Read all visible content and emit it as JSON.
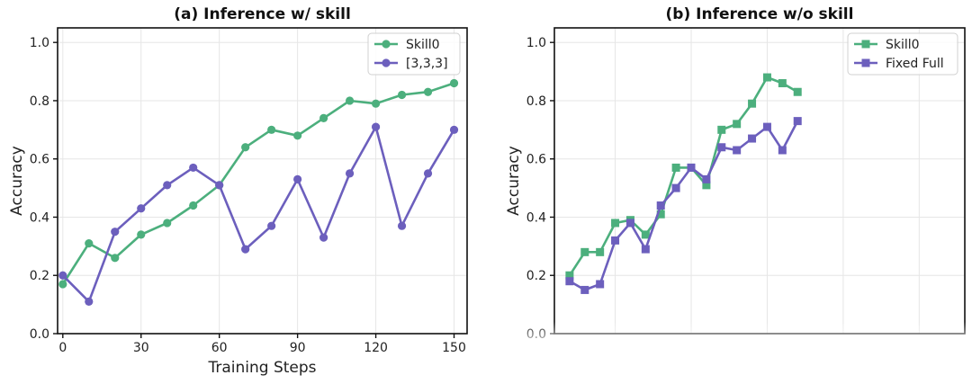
{
  "colors": {
    "green": "#4caf7d",
    "purple": "#6c5fbd"
  },
  "chart_data": [
    {
      "type": "line",
      "title": "(a) Inference w/ skill",
      "xlabel": "Training Steps",
      "ylabel": "Accuracy",
      "xlim": [
        -2,
        155
      ],
      "ylim": [
        0,
        1.05
      ],
      "xticks": [
        "0",
        "30",
        "60",
        "90",
        "120",
        "150"
      ],
      "yticks": [
        "0.0",
        "0.2",
        "0.4",
        "0.6",
        "0.8",
        "1.0"
      ],
      "grid": true,
      "legend_position": "top-right",
      "marker": "circle",
      "x": [
        0,
        10,
        20,
        30,
        40,
        50,
        60,
        70,
        80,
        90,
        100,
        110,
        120,
        130,
        140,
        150
      ],
      "series": [
        {
          "name": "Skill0",
          "color": "#4caf7d",
          "values": [
            0.17,
            0.31,
            0.26,
            0.34,
            0.38,
            0.44,
            0.51,
            0.64,
            0.7,
            0.68,
            0.74,
            0.8,
            0.79,
            0.82,
            0.83,
            0.86
          ]
        },
        {
          "name": "[3,3,3]",
          "color": "#6c5fbd",
          "values": [
            0.2,
            0.11,
            0.35,
            0.43,
            0.51,
            0.57,
            0.51,
            0.29,
            0.37,
            0.53,
            0.33,
            0.55,
            0.71,
            0.37,
            0.55,
            0.7
          ]
        }
      ]
    },
    {
      "type": "line",
      "title": "(b) Inference w/o skill",
      "xlabel": "",
      "ylabel": "Accuracy",
      "xlim": [
        -1,
        26
      ],
      "ylim": [
        0,
        1.05
      ],
      "xticks": [],
      "yticks": [
        "0.0",
        "0.2",
        "0.4",
        "0.6",
        "0.8",
        "1.0"
      ],
      "grid": true,
      "legend_position": "top-right",
      "marker": "square",
      "x": [
        0,
        1,
        2,
        3,
        4,
        5,
        6,
        7,
        8,
        9,
        10,
        11,
        12,
        13,
        14,
        15,
        16,
        17,
        18,
        19,
        20,
        21,
        22,
        23,
        24,
        25
      ],
      "series": [
        {
          "name": "Skill0",
          "color": "#4caf7d",
          "values": [
            0.2,
            0.28,
            0.28,
            0.38,
            0.39,
            0.34,
            0.41,
            0.57,
            0.57,
            0.51,
            0.7,
            0.72,
            0.79,
            0.88,
            0.86,
            0.83,
            null,
            null,
            null,
            null,
            null,
            null,
            null,
            null,
            null,
            null
          ]
        },
        {
          "name": "Fixed Full",
          "color": "#6c5fbd",
          "values": [
            0.18,
            0.15,
            0.17,
            0.32,
            0.38,
            0.29,
            0.44,
            0.5,
            0.57,
            0.53,
            0.64,
            0.63,
            0.67,
            0.71,
            0.63,
            0.73,
            null,
            null,
            null,
            null,
            null,
            null,
            null,
            null,
            null,
            null
          ]
        }
      ]
    }
  ]
}
